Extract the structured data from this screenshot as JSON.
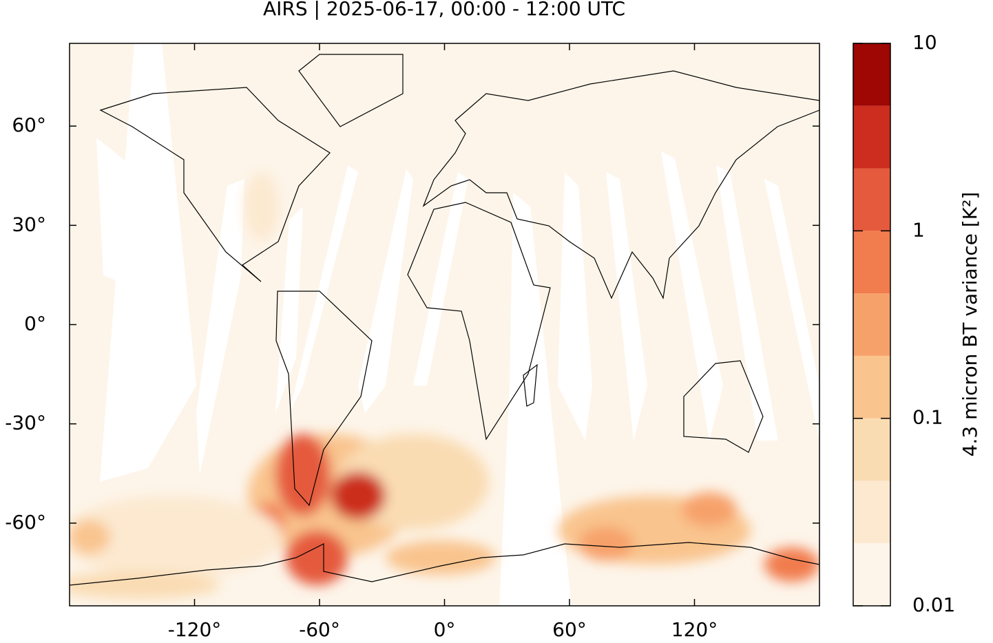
{
  "chart_data": {
    "type": "map",
    "title": "AIRS | 2025-06-17, 00:00 - 12:00 UTC",
    "xlim": [
      -180,
      180
    ],
    "ylim": [
      -85,
      85
    ],
    "xticks": [
      {
        "value": -120,
        "label": "-120°"
      },
      {
        "value": -60,
        "label": "-60°"
      },
      {
        "value": 0,
        "label": "0°"
      },
      {
        "value": 60,
        "label": "60°"
      },
      {
        "value": 120,
        "label": "120°"
      }
    ],
    "yticks": [
      {
        "value": 60,
        "label": "60°"
      },
      {
        "value": 30,
        "label": "30°"
      },
      {
        "value": 0,
        "label": "0°"
      },
      {
        "value": -30,
        "label": "-30°"
      },
      {
        "value": -60,
        "label": "-60°"
      }
    ],
    "colorbar": {
      "label": "4.3 micron BT variance [K²]",
      "lim": [
        0.01,
        10
      ],
      "log": true,
      "ticks": [
        0.01,
        0.1,
        1,
        10
      ],
      "colors": [
        "#fdf5ea",
        "#fce9d0",
        "#fadcb3",
        "#f9c48e",
        "#f7a16a",
        "#f17c4d",
        "#e55a3d",
        "#cc2d1f",
        "#9e0704"
      ]
    }
  }
}
